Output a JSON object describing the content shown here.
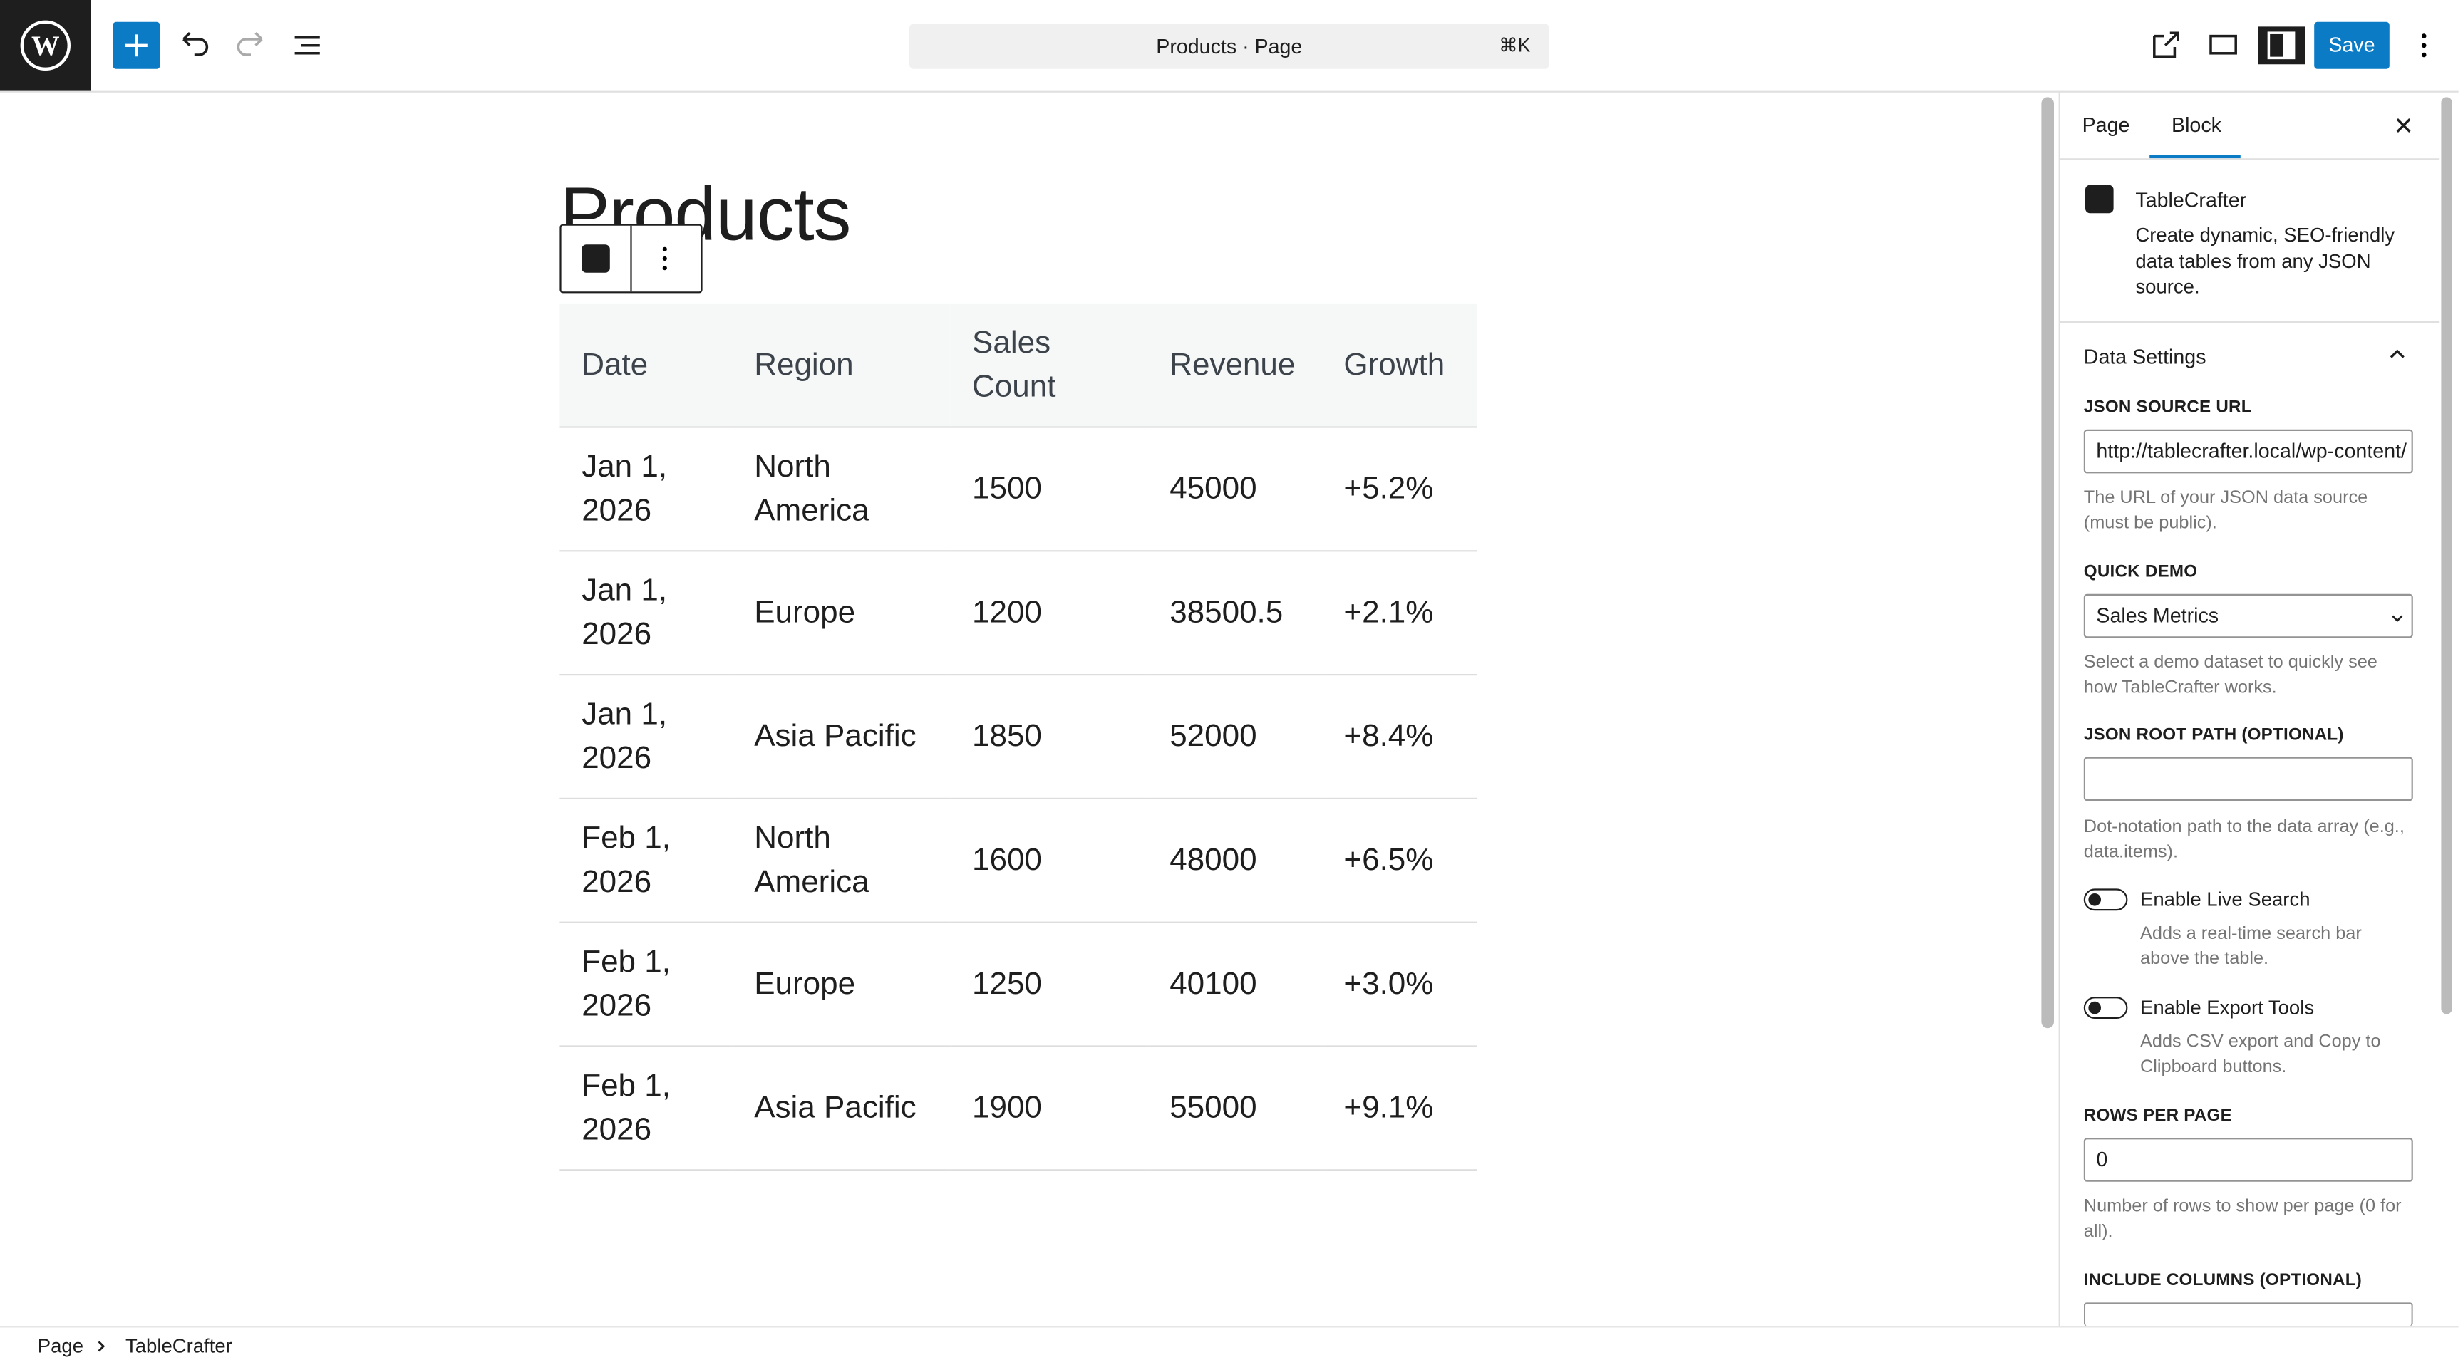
{
  "toolbar": {
    "command_bar": "Products · Page",
    "shortcut": "⌘K",
    "save": "Save"
  },
  "document": {
    "title": "Products",
    "table": {
      "headers": [
        "Date",
        "Region",
        "Sales Count",
        "Revenue",
        "Growth"
      ],
      "rows": [
        [
          "Jan 1, 2026",
          "North America",
          "1500",
          "45000",
          "+5.2%"
        ],
        [
          "Jan 1, 2026",
          "Europe",
          "1200",
          "38500.5",
          "+2.1%"
        ],
        [
          "Jan 1, 2026",
          "Asia Pacific",
          "1850",
          "52000",
          "+8.4%"
        ],
        [
          "Feb 1, 2026",
          "North America",
          "1600",
          "48000",
          "+6.5%"
        ],
        [
          "Feb 1, 2026",
          "Europe",
          "1250",
          "40100",
          "+3.0%"
        ],
        [
          "Feb 1, 2026",
          "Asia Pacific",
          "1900",
          "55000",
          "+9.1%"
        ]
      ]
    }
  },
  "sidebar": {
    "tabs": [
      "Page",
      "Block"
    ],
    "block": {
      "name": "TableCrafter",
      "description": "Create dynamic, SEO-friendly data tables from any JSON source."
    },
    "panel": {
      "title": "Data Settings",
      "json_url": {
        "label": "JSON SOURCE URL",
        "value": "http://tablecrafter.local/wp-content/",
        "help": "The URL of your JSON data source (must be public)."
      },
      "quick_demo": {
        "label": "QUICK DEMO",
        "value": "Sales Metrics",
        "help": "Select a demo dataset to quickly see how TableCrafter works."
      },
      "root_path": {
        "label": "JSON ROOT PATH (OPTIONAL)",
        "help": "Dot-notation path to the data array (e.g., data.items)."
      },
      "live_search": {
        "label": "Enable Live Search",
        "help": "Adds a real-time search bar above the table."
      },
      "export_tools": {
        "label": "Enable Export Tools",
        "help": "Adds CSV export and Copy to Clipboard buttons."
      },
      "rows_per_page": {
        "label": "ROWS PER PAGE",
        "value": "0",
        "help": "Number of rows to show per page (0 for all)."
      },
      "include_columns": {
        "label": "INCLUDE COLUMNS (OPTIONAL)"
      }
    }
  },
  "breadcrumbs": [
    "Page",
    "TableCrafter"
  ]
}
